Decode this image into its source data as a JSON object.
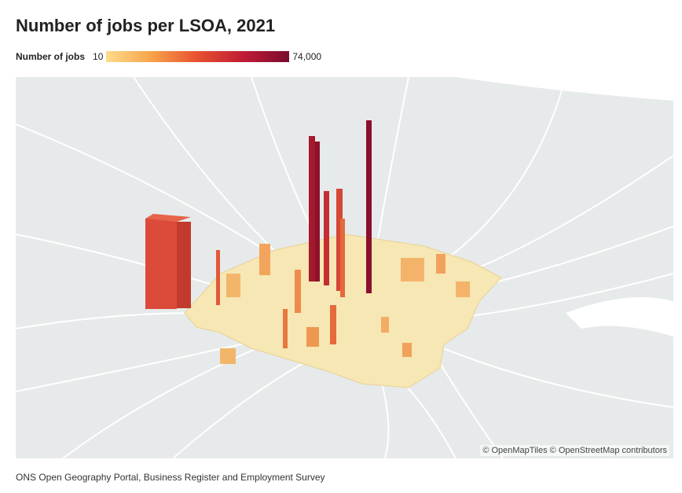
{
  "header": {
    "title": "Number of jobs per LSOA, 2021"
  },
  "legend": {
    "label": "Number of jobs",
    "min_label": "10",
    "max_label": "74,000"
  },
  "map": {
    "attribution": "© OpenMapTiles © OpenStreetMap contributors"
  },
  "footer": {
    "source": "ONS Open Geography Portal, Business Register and Employment Survey"
  }
}
